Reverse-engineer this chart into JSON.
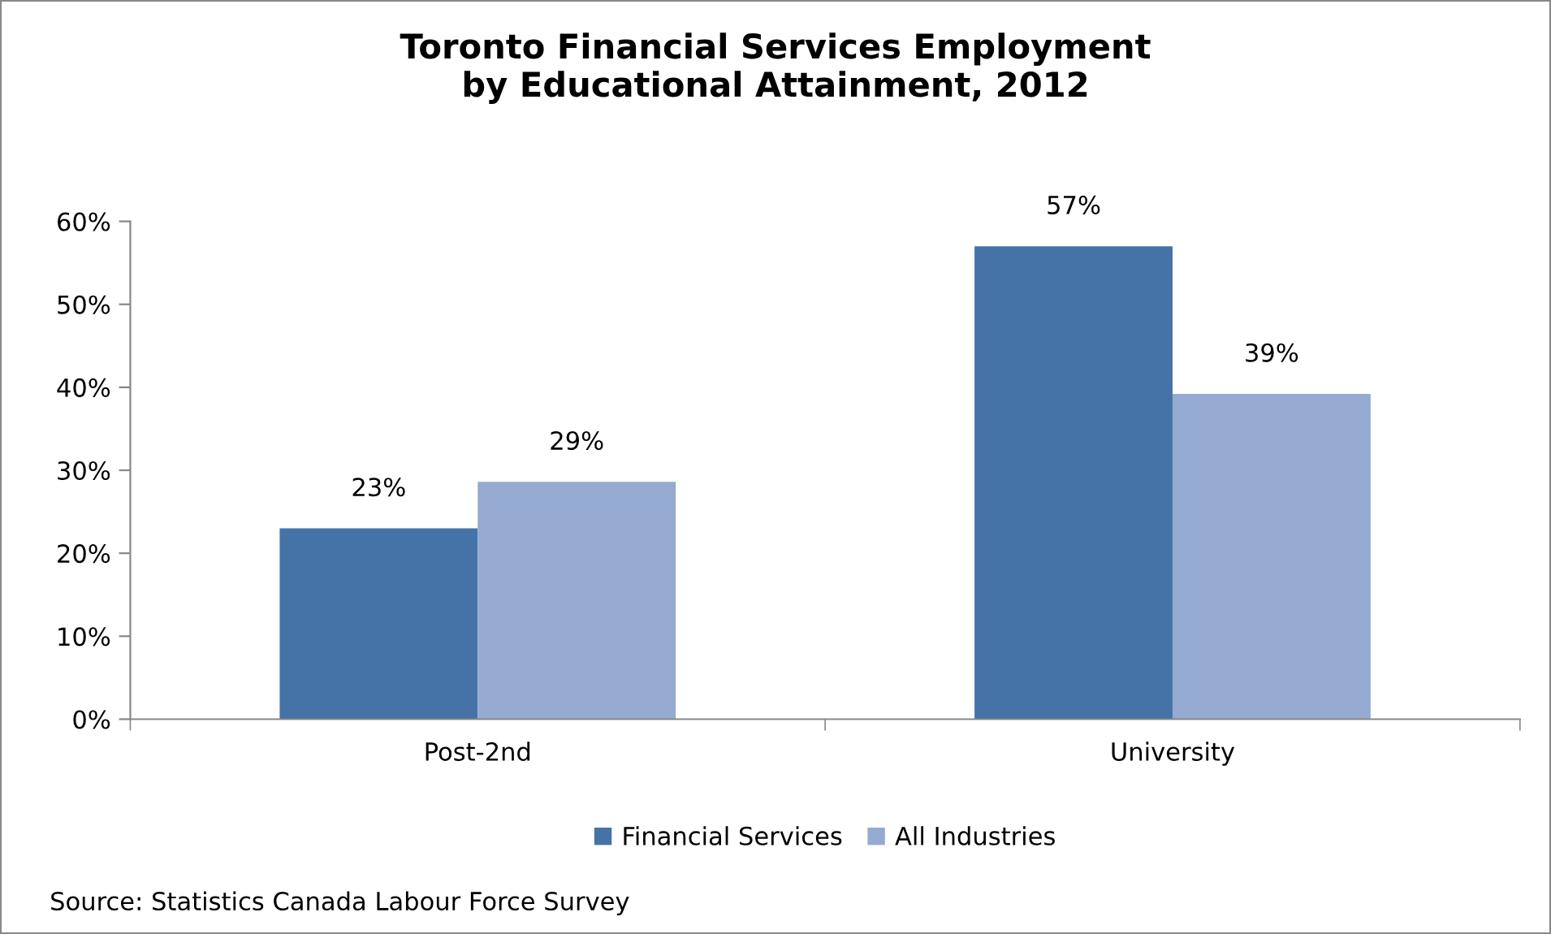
{
  "chart_data": {
    "type": "bar",
    "title": "Toronto Financial Services Employment\nby Educational Attainment, 2012",
    "categories": [
      "Post-2nd",
      "University"
    ],
    "series": [
      {
        "name": "Financial Services",
        "color": "#4573a7",
        "values": [
          23,
          57
        ],
        "value_labels": [
          "23%",
          "57%"
        ]
      },
      {
        "name": "All Industries",
        "color": "#95aad1",
        "values": [
          28.6,
          39.2
        ],
        "value_labels": [
          "29%",
          "39%"
        ]
      }
    ],
    "ylim": [
      0,
      60
    ],
    "yticks": [
      {
        "value": 0,
        "label": "0%"
      },
      {
        "value": 10,
        "label": "10%"
      },
      {
        "value": 20,
        "label": "20%"
      },
      {
        "value": 30,
        "label": "30%"
      },
      {
        "value": 40,
        "label": "40%"
      },
      {
        "value": 50,
        "label": "50%"
      },
      {
        "value": 60,
        "label": "60%"
      }
    ],
    "grid": false,
    "legend": "bottom",
    "annotations": [
      "Source: Statistics Canada Labour Force Survey"
    ]
  }
}
